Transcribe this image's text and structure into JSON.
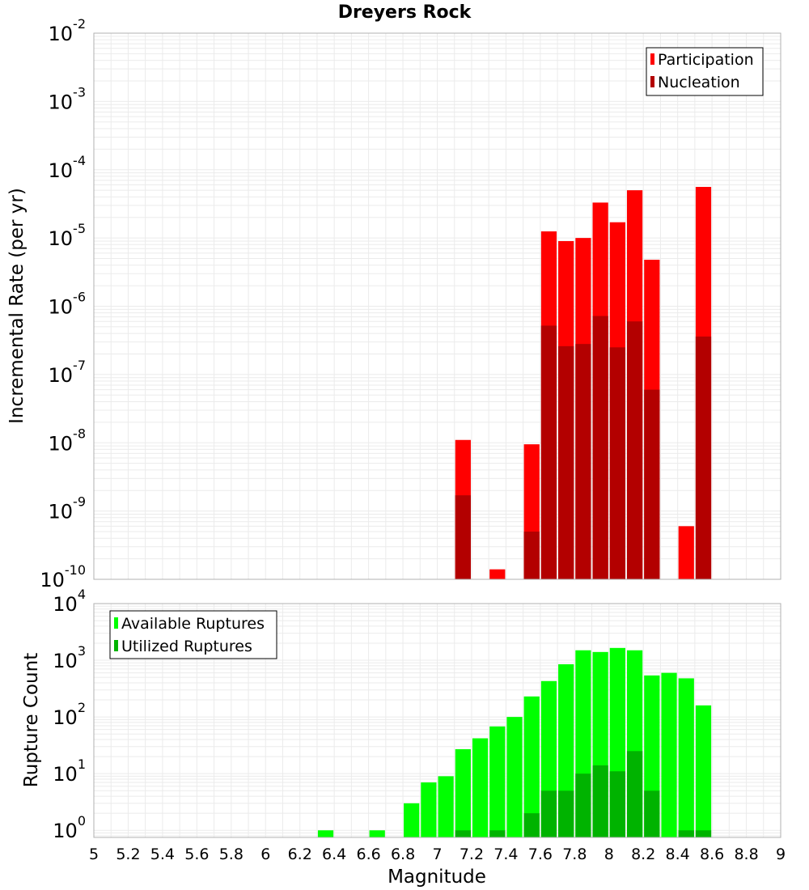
{
  "colors": {
    "participation": "#ff0000",
    "nucleation": "#b30000",
    "available": "#00ff00",
    "utilized": "#00b300",
    "grid": "#ebebeb",
    "plot_border": "#b0b0b0"
  },
  "chart_data": [
    {
      "type": "bar",
      "title": "Dreyers Rock",
      "xlabel": "",
      "ylabel": "Incremental Rate (per yr)",
      "yscale": "log",
      "ylim": [
        1e-10,
        0.01
      ],
      "xlim": [
        5,
        9
      ],
      "y_ticks": [
        {
          "base": "10",
          "exp": "-10"
        },
        {
          "base": "10",
          "exp": "-9"
        },
        {
          "base": "10",
          "exp": "-8"
        },
        {
          "base": "10",
          "exp": "-7"
        },
        {
          "base": "10",
          "exp": "-6"
        },
        {
          "base": "10",
          "exp": "-5"
        },
        {
          "base": "10",
          "exp": "-4"
        },
        {
          "base": "10",
          "exp": "-3"
        },
        {
          "base": "10",
          "exp": "-2"
        }
      ],
      "legend": {
        "position": "top-right",
        "entries": [
          "Participation",
          "Nucleation"
        ]
      },
      "series": [
        {
          "name": "Participation",
          "x": [
            7.15,
            7.35,
            7.55,
            7.65,
            7.75,
            7.85,
            7.95,
            8.05,
            8.15,
            8.25,
            8.45,
            8.55
          ],
          "values": [
            1.1e-08,
            1.4e-10,
            9.5e-09,
            1.25e-05,
            9e-06,
            1e-05,
            3.3e-05,
            1.7e-05,
            5e-05,
            4.8e-06,
            6e-10,
            5.6e-05
          ]
        },
        {
          "name": "Nucleation",
          "x": [
            7.15,
            7.55,
            7.65,
            7.75,
            7.85,
            7.95,
            8.05,
            8.15,
            8.25,
            8.55
          ],
          "values": [
            1.7e-09,
            5e-10,
            5.2e-07,
            2.6e-07,
            2.8e-07,
            7.2e-07,
            2.5e-07,
            6e-07,
            6e-08,
            3.6e-07
          ]
        }
      ]
    },
    {
      "type": "bar",
      "title": "",
      "xlabel": "Magnitude",
      "ylabel": "Rupture Count",
      "yscale": "log",
      "ylim": [
        0.75,
        10000
      ],
      "xlim": [
        5,
        9
      ],
      "x_ticks": [
        "5",
        "5.2",
        "5.4",
        "5.6",
        "5.8",
        "6",
        "6.2",
        "6.4",
        "6.6",
        "6.8",
        "7",
        "7.2",
        "7.4",
        "7.6",
        "7.8",
        "8",
        "8.2",
        "8.4",
        "8.6",
        "8.8",
        "9"
      ],
      "y_ticks": [
        {
          "base": "10",
          "exp": "0"
        },
        {
          "base": "10",
          "exp": "1"
        },
        {
          "base": "10",
          "exp": "2"
        },
        {
          "base": "10",
          "exp": "3"
        },
        {
          "base": "10",
          "exp": "4"
        }
      ],
      "legend": {
        "position": "top-left",
        "entries": [
          "Available Ruptures",
          "Utilized Ruptures"
        ]
      },
      "series": [
        {
          "name": "Available Ruptures",
          "x": [
            6.35,
            6.65,
            6.85,
            6.95,
            7.05,
            7.15,
            7.25,
            7.35,
            7.45,
            7.55,
            7.65,
            7.75,
            7.85,
            7.95,
            8.05,
            8.15,
            8.25,
            8.35,
            8.45,
            8.55
          ],
          "values": [
            1,
            1,
            3,
            7,
            9,
            27,
            42,
            68,
            100,
            230,
            430,
            850,
            1500,
            1400,
            1650,
            1500,
            540,
            600,
            480,
            160
          ]
        },
        {
          "name": "Utilized Ruptures",
          "x": [
            7.15,
            7.35,
            7.55,
            7.65,
            7.75,
            7.85,
            7.95,
            8.05,
            8.15,
            8.25,
            8.45,
            8.55
          ],
          "values": [
            1,
            1,
            2,
            5,
            5,
            10,
            14,
            11,
            25,
            5,
            1,
            1
          ]
        }
      ]
    }
  ]
}
